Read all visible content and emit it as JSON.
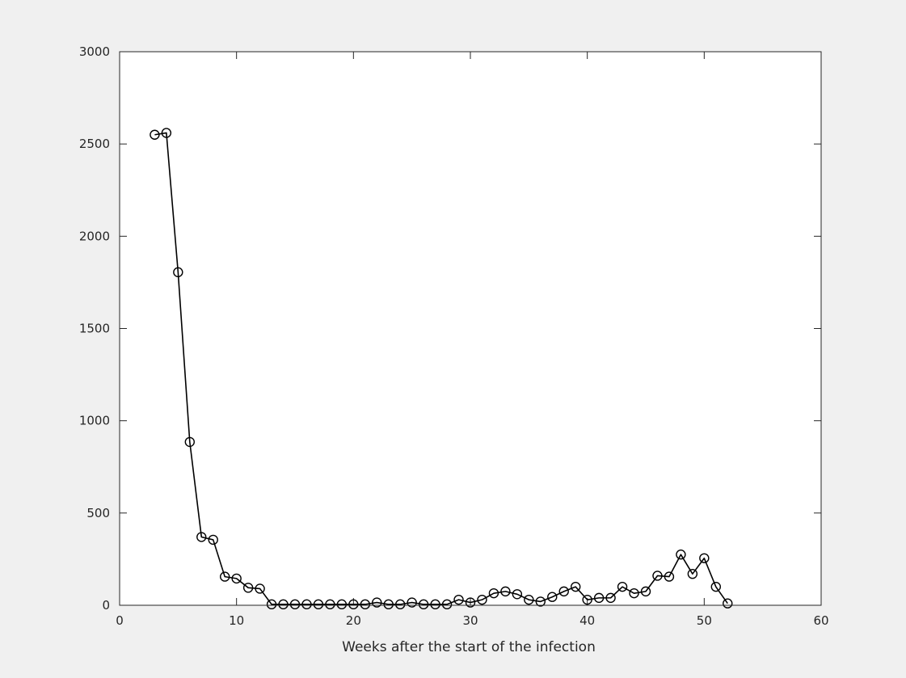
{
  "chart_data": {
    "type": "line",
    "xlabel": "Weeks after the start of the infection",
    "ylabel": "",
    "xlim": [
      0,
      60
    ],
    "ylim": [
      0,
      3000
    ],
    "x_ticks": [
      "0",
      "10",
      "20",
      "30",
      "40",
      "50",
      "60"
    ],
    "y_ticks": [
      "0",
      "500",
      "1000",
      "1500",
      "2000",
      "2500",
      "3000"
    ],
    "grid": false,
    "legend": "none",
    "marker": "open-circle",
    "line_color": "#000000",
    "background_color": "#f0f0f0",
    "plot_area_color": "#ffffff",
    "series": [
      {
        "x": [
          3,
          4,
          5,
          6,
          7,
          8,
          9,
          10,
          11,
          12,
          13,
          14,
          15,
          16,
          17,
          18,
          19,
          20,
          21,
          22,
          23,
          24,
          25,
          26,
          27,
          28,
          29,
          30,
          31,
          32,
          33,
          34,
          35,
          36,
          37,
          38,
          39,
          40,
          41,
          42,
          43,
          44,
          45,
          46,
          47,
          48,
          49,
          50,
          51,
          52
        ],
        "values": [
          2550,
          2560,
          1805,
          885,
          370,
          355,
          155,
          145,
          95,
          90,
          5,
          5,
          5,
          5,
          5,
          5,
          5,
          5,
          5,
          15,
          5,
          5,
          15,
          5,
          5,
          5,
          30,
          15,
          30,
          65,
          75,
          60,
          30,
          20,
          45,
          75,
          100,
          30,
          40,
          40,
          100,
          65,
          75,
          160,
          155,
          275,
          170,
          255,
          100,
          10
        ]
      }
    ]
  }
}
